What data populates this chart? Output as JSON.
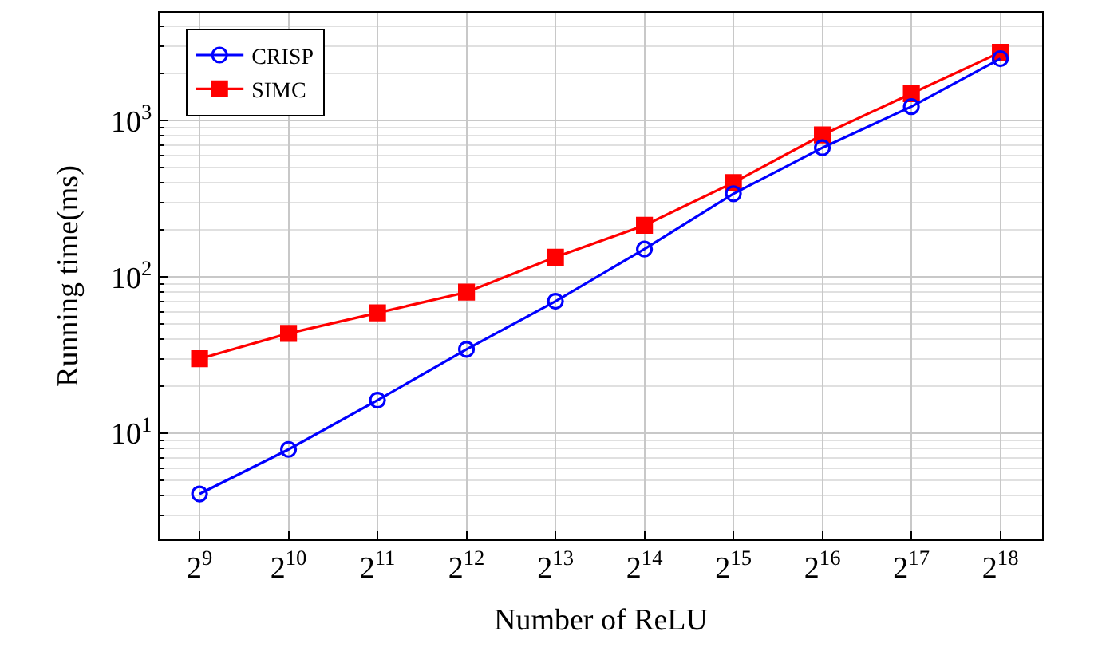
{
  "chart_data": {
    "type": "line",
    "xlabel": "Number of ReLU",
    "ylabel": "Running time(ms)",
    "x": [
      512,
      1024,
      2048,
      4096,
      8192,
      16384,
      32768,
      65536,
      131072,
      262144
    ],
    "series": [
      {
        "name": "CRISP",
        "color": "#0000ff",
        "marker": "circle",
        "values": [
          4.1,
          7.9,
          16.3,
          34.5,
          70,
          151,
          341,
          671,
          1230,
          2490
        ]
      },
      {
        "name": "SIMC",
        "color": "#ff0000",
        "marker": "square",
        "values": [
          30,
          43.6,
          59,
          80,
          134,
          214,
          402,
          811,
          1490,
          2735
        ]
      }
    ],
    "log": "xy",
    "xlim": [
      375,
      363000
    ],
    "ylim": [
      2.1,
      4900
    ],
    "xticks": [
      {
        "value": 512,
        "label": "2$^{9}$"
      },
      {
        "value": 1024,
        "label": "2$^{10}$"
      },
      {
        "value": 2048,
        "label": "2$^{11}$"
      },
      {
        "value": 4096,
        "label": "2$^{12}$"
      },
      {
        "value": 8192,
        "label": "2$^{13}$"
      },
      {
        "value": 16384,
        "label": "2$^{14}$"
      },
      {
        "value": 32768,
        "label": "2$^{15}$"
      },
      {
        "value": 65536,
        "label": "2$^{16}$"
      },
      {
        "value": 131072,
        "label": "2$^{17}$"
      },
      {
        "value": 262144,
        "label": "2$^{18}$"
      }
    ],
    "yticks": [
      {
        "value": 10,
        "label": "10$^{1}$"
      },
      {
        "value": 100,
        "label": "10$^{2}$"
      },
      {
        "value": 1000,
        "label": "10$^{3}$"
      }
    ],
    "grid": true,
    "legend": "top left",
    "line_style": "solid"
  }
}
